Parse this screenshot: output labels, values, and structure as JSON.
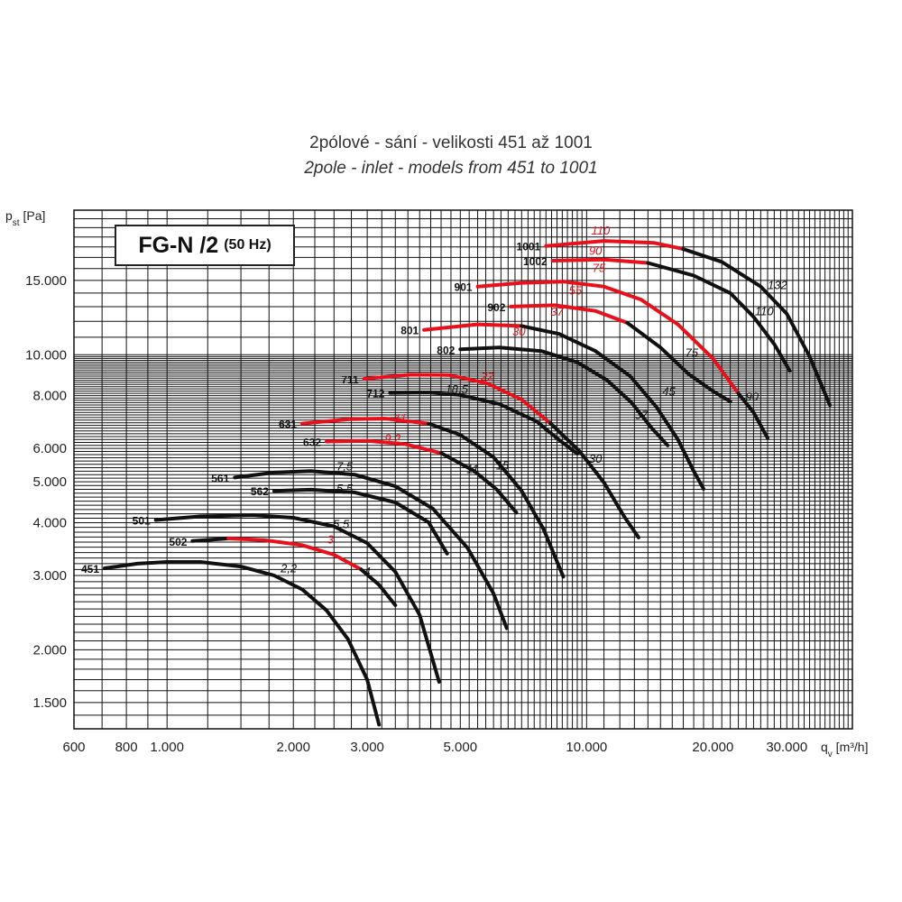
{
  "title_line1": "2pólové - sání - velikosti 451 až 1001",
  "title_line2": "2pole - inlet - models from 451 to 1001",
  "model_box": {
    "name": "FG-N /2",
    "frequency": "(50 Hz)"
  },
  "colors": {
    "black_curve": "#111111",
    "red_curve": "#e8101a",
    "grid": "#111111"
  },
  "chart_data": {
    "type": "line",
    "x_scale": "log",
    "y_scale": "log",
    "xlim": [
      600,
      43000
    ],
    "ylim": [
      1300,
      22000
    ],
    "grid": true,
    "ylabel": "p_st [Pa]",
    "xlabel": "q_v [m³/h]",
    "x_ticks": [
      {
        "value": 600,
        "label": "600"
      },
      {
        "value": 800,
        "label": "800"
      },
      {
        "value": 1000,
        "label": "1.000"
      },
      {
        "value": 2000,
        "label": "2.000"
      },
      {
        "value": 3000,
        "label": "3.000"
      },
      {
        "value": 5000,
        "label": "5.000"
      },
      {
        "value": 10000,
        "label": "10.000"
      },
      {
        "value": 20000,
        "label": "20.000"
      },
      {
        "value": 30000,
        "label": "30.000"
      }
    ],
    "y_ticks": [
      {
        "value": 1500,
        "label": "1.500"
      },
      {
        "value": 2000,
        "label": "2.000"
      },
      {
        "value": 3000,
        "label": "3.000"
      },
      {
        "value": 4000,
        "label": "4.000"
      },
      {
        "value": 5000,
        "label": "5.000"
      },
      {
        "value": 6000,
        "label": "6.000"
      },
      {
        "value": 8000,
        "label": "8.000"
      },
      {
        "value": 10000,
        "label": "10.000"
      },
      {
        "value": 15000,
        "label": "15.000"
      }
    ],
    "series": [
      {
        "name": "451",
        "segments": [
          {
            "color": "black",
            "points": [
              [
                710,
                3120
              ],
              [
                850,
                3200
              ],
              [
                1000,
                3230
              ],
              [
                1200,
                3230
              ],
              [
                1500,
                3150
              ],
              [
                1800,
                3000
              ],
              [
                2100,
                2780
              ],
              [
                2400,
                2480
              ],
              [
                2700,
                2120
              ],
              [
                3000,
                1700
              ],
              [
                3200,
                1330
              ]
            ]
          }
        ],
        "power_labels": [
          {
            "text": "2,2",
            "x": 1950,
            "y": 3050,
            "color": "black"
          }
        ]
      },
      {
        "name": "502",
        "segments": [
          {
            "color": "black",
            "points": [
              [
                1150,
                3620
              ],
              [
                1400,
                3670
              ]
            ]
          },
          {
            "color": "red",
            "points": [
              [
                1400,
                3670
              ],
              [
                1700,
                3640
              ],
              [
                2100,
                3540
              ],
              [
                2500,
                3360
              ],
              [
                2900,
                3100
              ]
            ]
          },
          {
            "color": "black",
            "points": [
              [
                2900,
                3100
              ],
              [
                3200,
                2850
              ],
              [
                3500,
                2550
              ]
            ]
          }
        ],
        "power_labels": [
          {
            "text": "3",
            "x": 2450,
            "y": 3570,
            "color": "red"
          },
          {
            "text": "4",
            "x": 3000,
            "y": 3000,
            "color": "black"
          }
        ]
      },
      {
        "name": "501",
        "segments": [
          {
            "color": "black",
            "points": [
              [
                940,
                4060
              ],
              [
                1200,
                4140
              ],
              [
                1600,
                4170
              ],
              [
                2000,
                4110
              ],
              [
                2500,
                3920
              ],
              [
                3000,
                3580
              ],
              [
                3500,
                3060
              ],
              [
                4000,
                2420
              ],
              [
                4450,
                1680
              ]
            ]
          }
        ],
        "power_labels": [
          {
            "text": "5,5",
            "x": 2600,
            "y": 3880,
            "color": "black"
          }
        ]
      },
      {
        "name": "562",
        "segments": [
          {
            "color": "black",
            "points": [
              [
                1800,
                4760
              ],
              [
                2200,
                4790
              ],
              [
                2800,
                4720
              ],
              [
                3500,
                4470
              ],
              [
                4200,
                4010
              ],
              [
                4650,
                3380
              ]
            ]
          }
        ],
        "power_labels": [
          {
            "text": "5,5",
            "x": 2650,
            "y": 4720,
            "color": "black"
          }
        ]
      },
      {
        "name": "561",
        "segments": [
          {
            "color": "black",
            "points": [
              [
                1450,
                5120
              ],
              [
                1800,
                5260
              ],
              [
                2200,
                5300
              ],
              [
                2800,
                5200
              ],
              [
                3500,
                4880
              ],
              [
                4300,
                4320
              ],
              [
                5200,
                3490
              ],
              [
                6000,
                2720
              ],
              [
                6450,
                2250
              ]
            ]
          }
        ],
        "power_labels": [
          {
            "text": "7,5",
            "x": 2650,
            "y": 5320,
            "color": "black"
          }
        ]
      },
      {
        "name": "632",
        "segments": [
          {
            "color": "black",
            "points": [
              [
                2400,
                6230
              ]
            ]
          },
          {
            "color": "red",
            "points": [
              [
                2400,
                6230
              ],
              [
                3000,
                6250
              ],
              [
                3700,
                6140
              ],
              [
                4500,
                5850
              ]
            ]
          },
          {
            "color": "black",
            "points": [
              [
                4500,
                5850
              ],
              [
                5400,
                5300
              ],
              [
                6100,
                4800
              ],
              [
                6800,
                4230
              ]
            ]
          }
        ],
        "power_labels": [
          {
            "text": "9,2",
            "x": 3450,
            "y": 6200,
            "color": "red"
          },
          {
            "text": "11",
            "x": 5350,
            "y": 5250,
            "color": "black"
          }
        ]
      },
      {
        "name": "631",
        "segments": [
          {
            "color": "red",
            "points": [
              [
                2100,
                6870
              ],
              [
                2700,
                7030
              ],
              [
                3300,
                7060
              ],
              [
                4200,
                6870
              ]
            ]
          },
          {
            "color": "black",
            "points": [
              [
                4200,
                6870
              ],
              [
                5000,
                6460
              ],
              [
                6000,
                5720
              ],
              [
                7000,
                4760
              ],
              [
                7900,
                3860
              ],
              [
                8800,
                2980
              ]
            ]
          }
        ],
        "power_labels": [
          {
            "text": "11",
            "x": 3600,
            "y": 6920,
            "color": "red"
          },
          {
            "text": "15",
            "x": 6300,
            "y": 5350,
            "color": "black"
          }
        ]
      },
      {
        "name": "712",
        "segments": [
          {
            "color": "black",
            "points": [
              [
                3400,
                8120
              ],
              [
                4200,
                8140
              ],
              [
                5000,
                8030
              ],
              [
                6200,
                7640
              ],
              [
                7600,
                6950
              ],
              [
                8600,
                6280
              ],
              [
                9500,
                5830
              ]
            ]
          }
        ],
        "power_labels": [
          {
            "text": "18,5",
            "x": 4900,
            "y": 8100,
            "color": "black"
          }
        ]
      },
      {
        "name": "711",
        "segments": [
          {
            "color": "red",
            "points": [
              [
                2950,
                8770
              ],
              [
                3800,
                8970
              ],
              [
                4700,
                8950
              ],
              [
                5800,
                8550
              ],
              [
                7000,
                7830
              ],
              [
                8200,
                6880
              ]
            ]
          },
          {
            "color": "black",
            "points": [
              [
                8200,
                6880
              ],
              [
                9600,
                5920
              ],
              [
                11000,
                4980
              ],
              [
                12300,
                4130
              ],
              [
                13300,
                3690
              ]
            ]
          }
        ],
        "power_labels": [
          {
            "text": "22",
            "x": 5800,
            "y": 8700,
            "color": "red"
          },
          {
            "text": "30",
            "x": 10500,
            "y": 5550,
            "color": "black"
          }
        ]
      },
      {
        "name": "802",
        "segments": [
          {
            "color": "black",
            "points": [
              [
                5000,
                10300
              ],
              [
                6200,
                10400
              ],
              [
                7800,
                10200
              ],
              [
                9500,
                9600
              ],
              [
                11200,
                8700
              ],
              [
                12800,
                7700
              ],
              [
                14300,
                6700
              ],
              [
                15600,
                6100
              ]
            ]
          }
        ],
        "power_labels": [
          {
            "text": "37",
            "x": 13500,
            "y": 7050,
            "color": "black"
          }
        ]
      },
      {
        "name": "801",
        "segments": [
          {
            "color": "red",
            "points": [
              [
                4100,
                11450
              ],
              [
                5500,
                11800
              ],
              [
                7000,
                11700
              ]
            ]
          },
          {
            "color": "black",
            "points": [
              [
                7000,
                11700
              ],
              [
                8600,
                11200
              ],
              [
                10500,
                10200
              ],
              [
                12700,
                8900
              ],
              [
                14700,
                7500
              ],
              [
                16500,
                6300
              ],
              [
                18000,
                5300
              ],
              [
                19000,
                4810
              ]
            ]
          }
        ],
        "power_labels": [
          {
            "text": "30",
            "x": 6900,
            "y": 11100,
            "color": "red"
          },
          {
            "text": "45",
            "x": 15700,
            "y": 8000,
            "color": "black"
          }
        ]
      },
      {
        "name": "902",
        "segments": [
          {
            "color": "red",
            "points": [
              [
                6600,
                13000
              ],
              [
                8400,
                13100
              ],
              [
                10500,
                12700
              ],
              [
                12500,
                11900
              ]
            ]
          },
          {
            "color": "black",
            "points": [
              [
                12500,
                11900
              ],
              [
                15000,
                10400
              ],
              [
                17500,
                9000
              ],
              [
                20000,
                8200
              ],
              [
                22000,
                7750
              ]
            ]
          }
        ],
        "power_labels": [
          {
            "text": "37",
            "x": 8500,
            "y": 12380,
            "color": "red"
          },
          {
            "text": "75",
            "x": 17800,
            "y": 9900,
            "color": "black"
          }
        ]
      },
      {
        "name": "901",
        "segments": [
          {
            "color": "red",
            "points": [
              [
                5500,
                14500
              ],
              [
                7000,
                14800
              ],
              [
                8800,
                14900
              ],
              [
                11000,
                14500
              ],
              [
                13500,
                13500
              ],
              [
                16500,
                11800
              ],
              [
                20000,
                9800
              ],
              [
                23000,
                8100
              ]
            ]
          },
          {
            "color": "black",
            "points": [
              [
                23000,
                8100
              ],
              [
                25000,
                7300
              ],
              [
                27000,
                6350
              ]
            ]
          }
        ],
        "power_labels": [
          {
            "text": "55",
            "x": 9400,
            "y": 13900,
            "color": "red"
          },
          {
            "text": "90",
            "x": 24800,
            "y": 7800,
            "color": "black"
          }
        ]
      },
      {
        "name": "1002",
        "segments": [
          {
            "color": "red",
            "points": [
              [
                8300,
                16700
              ],
              [
                11000,
                16800
              ],
              [
                14000,
                16500
              ]
            ]
          },
          {
            "color": "black",
            "points": [
              [
                14000,
                16500
              ],
              [
                18000,
                15400
              ],
              [
                22000,
                14000
              ],
              [
                25000,
                12300
              ],
              [
                28000,
                10600
              ],
              [
                30500,
                9150
              ]
            ]
          }
        ],
        "power_labels": [
          {
            "text": "75",
            "x": 10700,
            "y": 15700,
            "color": "red"
          },
          {
            "text": "110",
            "x": 26500,
            "y": 12400,
            "color": "black"
          }
        ]
      },
      {
        "name": "1001",
        "segments": [
          {
            "color": "red",
            "points": [
              [
                8000,
                18100
              ],
              [
                11000,
                18600
              ],
              [
                14500,
                18400
              ],
              [
                17000,
                17800
              ]
            ]
          },
          {
            "color": "black",
            "points": [
              [
                17000,
                17800
              ],
              [
                21000,
                16600
              ],
              [
                26000,
                14500
              ],
              [
                30000,
                12500
              ],
              [
                34000,
                9900
              ],
              [
                38000,
                7600
              ]
            ]
          }
        ],
        "power_labels": [
          {
            "text": "110",
            "x": 10800,
            "y": 19250,
            "color": "red"
          },
          {
            "text": "90",
            "x": 10500,
            "y": 17250,
            "color": "red"
          },
          {
            "text": "132",
            "x": 28500,
            "y": 14300,
            "color": "black"
          }
        ]
      }
    ]
  }
}
